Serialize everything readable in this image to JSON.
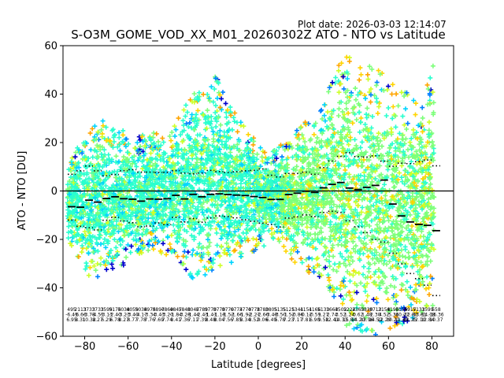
{
  "plot_date": "Plot date: 2026-03-03 12:14:07",
  "chart_data": {
    "type": "scatter",
    "title": "S-O3M_GOME_VOD_XX_M01_20260302Z ATO - NTO vs Latitude",
    "xlabel": "Latitude [degrees]",
    "ylabel": "ATO - NTO [DU]",
    "xlim": [
      -90,
      90
    ],
    "ylim": [
      -60,
      60
    ],
    "xticks": [
      -80,
      -60,
      -40,
      -20,
      0,
      20,
      40,
      60,
      80
    ],
    "yticks": [
      -60,
      -40,
      -20,
      0,
      20,
      40,
      60
    ],
    "grid": false,
    "legend": "none",
    "zero_line": true,
    "marker": "+",
    "colormap": [
      "#0000cd",
      "#0080ff",
      "#00d4ff",
      "#29ffce",
      "#7dff7a",
      "#ceff29",
      "#ffd400",
      "#ffa500"
    ],
    "scatter_envelope": {
      "lat": [
        -88,
        -84,
        -80,
        -76,
        -72,
        -68,
        -64,
        -60,
        -56,
        -52,
        -48,
        -44,
        -40,
        -36,
        -32,
        -28,
        -24,
        -20,
        -16,
        -12,
        -8,
        -4,
        0,
        4,
        8,
        12,
        16,
        20,
        24,
        28,
        32,
        36,
        40,
        44,
        48,
        52,
        56,
        60,
        64,
        68,
        72,
        76,
        80
      ],
      "upper": [
        10,
        18,
        22,
        28,
        30,
        28,
        25,
        26,
        22,
        24,
        25,
        22,
        25,
        32,
        38,
        42,
        45,
        50,
        40,
        36,
        30,
        25,
        22,
        15,
        18,
        20,
        24,
        28,
        30,
        34,
        42,
        50,
        58,
        55,
        50,
        52,
        50,
        48,
        45,
        42,
        38,
        35,
        55
      ],
      "lower": [
        -20,
        -28,
        -32,
        -38,
        -36,
        -34,
        -32,
        -30,
        -28,
        -25,
        -24,
        -26,
        -28,
        -30,
        -35,
        -38,
        -36,
        -34,
        -32,
        -30,
        -28,
        -26,
        -25,
        -22,
        -20,
        -24,
        -30,
        -32,
        -34,
        -36,
        -40,
        -45,
        -55,
        -58,
        -58,
        -60,
        -60,
        -58,
        -55,
        -55,
        -52,
        -50,
        -48
      ]
    },
    "mean_bins": {
      "lat": [
        -86,
        -82,
        -78,
        -74,
        -70,
        -66,
        -62,
        -58,
        -54,
        -50,
        -46,
        -42,
        -38,
        -34,
        -30,
        -26,
        -22,
        -18,
        -14,
        -10,
        -6,
        -2,
        2,
        6,
        10,
        14,
        18,
        22,
        26,
        30,
        34,
        38,
        42,
        46,
        50,
        54,
        58,
        62,
        66,
        70,
        74,
        78,
        82
      ],
      "mean": [
        -6.5,
        -6.7,
        -3.8,
        -4.6,
        -3.1,
        -2.4,
        -3.2,
        -3.4,
        -4.2,
        -3.3,
        -3.4,
        -3.2,
        -1.8,
        -3.3,
        -1.4,
        -2.4,
        -1.4,
        -1.2,
        -1.5,
        -1.7,
        -1.9,
        -2.3,
        -2.7,
        -3.5,
        -3.5,
        -1.5,
        -0.9,
        -0.1,
        -0.6,
        1.3,
        2.7,
        3.5,
        1.2,
        0.6,
        1.5,
        2.3,
        4.5,
        -5.4,
        -10.3,
        -12.8,
        -13.8,
        -14.2,
        -16.4
      ],
      "plus_sd": [
        6.9,
        8.3,
        10.3,
        8.3,
        6.3,
        6.8,
        8.3,
        8.8,
        7.8,
        7.8,
        7.7,
        7.7,
        8.4,
        7.4,
        7.1,
        7.4,
        8.5,
        8.0,
        7.6,
        7.9,
        8.3,
        8.5,
        9.1,
        6.5,
        5.8,
        7.2,
        7.2,
        7.8,
        6.9,
        9.6,
        12.4,
        14.3,
        15.8,
        14.2,
        14.0,
        14.5,
        12.3,
        10.2,
        11.5,
        11.3,
        12.1,
        12.8,
        10.4
      ],
      "minus_sd": [
        -12.0,
        -14.6,
        -15.2,
        -16.1,
        -12.1,
        -10.9,
        -12.4,
        -13.1,
        -14.8,
        -14.5,
        -13.2,
        -13.9,
        -10.9,
        -12.8,
        -11.4,
        -12.9,
        -11.2,
        -10.3,
        -10.6,
        -11.1,
        -11.9,
        -12.5,
        -13.3,
        -13.9,
        -14.9,
        -11.2,
        -10.7,
        -9.9,
        -10.6,
        -8.9,
        -8.4,
        -8.9,
        -12.3,
        -14.8,
        -17.2,
        -20.0,
        -21.1,
        -25.7,
        -30.1,
        -34.1,
        -36.2,
        -38.9,
        -43.2
      ]
    },
    "bin_stats_rows": [
      [
        "495",
        "2113",
        "3733",
        "3733",
        "3599",
        "5174",
        "5038",
        "4059",
        "5034",
        "8975",
        "8897",
        "4869",
        "4847",
        "5848",
        "8047",
        "8789",
        "9770",
        "8770",
        "8770",
        "6774",
        "3770",
        "4778",
        "3780",
        "3805",
        "5135",
        "5125",
        "1341",
        "4151",
        "4166",
        "5133",
        "1663",
        "4502",
        "5224",
        "2363",
        "5830",
        "8713",
        "2158",
        "4196",
        "3155",
        "4917",
        "5133",
        "1599",
        "558"
      ],
      [
        "-6.45",
        "-6.66",
        "-3.78",
        "-4.55",
        "-3.13",
        "-2.40",
        "-3.23",
        "-3.40",
        "-4.17",
        "-3.34",
        "-3.43",
        "-3.20",
        "-1.84",
        "-3.28",
        "-1.44",
        "-2.43",
        "-1.41",
        "-1.18",
        "-1.52",
        "-1.66",
        "-1.92",
        "-2.27",
        "-2.66",
        "-3.48",
        "-3.50",
        "-1.52",
        "-0.86",
        "-0.12",
        "-0.59",
        "1.27",
        "2.74",
        "3.52",
        "1.24",
        "0.62",
        "1.48",
        "2.30",
        "4.52",
        "-5.36",
        "-10.27",
        "-12.80",
        "-13.81",
        "-14.18",
        "-16.36"
      ],
      [
        "6.95",
        "8.31",
        "10.32",
        "8.27",
        "6.29",
        "6.78",
        "8.27",
        "8.77",
        "7.78",
        "7.76",
        "7.69",
        "7.74",
        "8.41",
        "7.36",
        "7.11",
        "7.39",
        "8.48",
        "8.04",
        "7.56",
        "7.85",
        "8.34",
        "8.52",
        "9.06",
        "6.49",
        "5.78",
        "7.23",
        "7.17",
        "7.81",
        "6.90",
        "9.58",
        "12.41",
        "14.33",
        "15.84",
        "14.20",
        "13.96",
        "14.52",
        "12.29",
        "10.21",
        "11.49",
        "11.25",
        "12.10",
        "12.84",
        "10.37"
      ]
    ]
  }
}
